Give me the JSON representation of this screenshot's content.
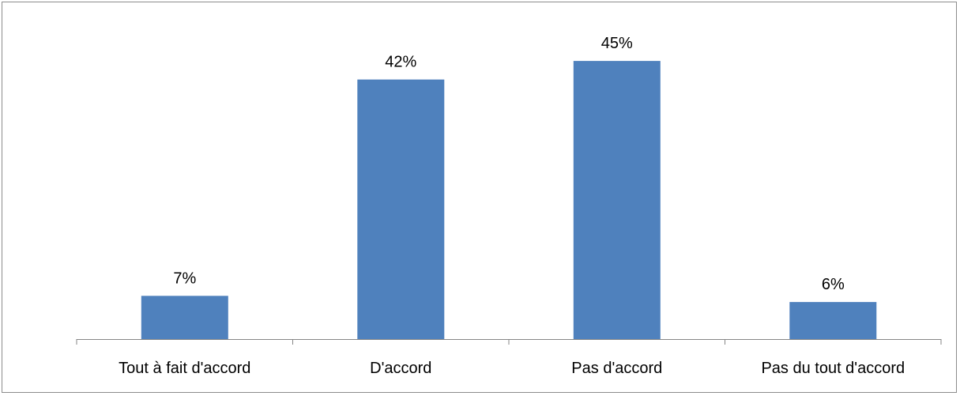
{
  "chart_data": {
    "type": "bar",
    "categories": [
      "Tout à fait d'accord",
      "D'accord",
      "Pas d'accord",
      "Pas du tout d'accord"
    ],
    "values": [
      7,
      42,
      45,
      6
    ],
    "data_labels": [
      "7%",
      "42%",
      "45%",
      "6%"
    ],
    "title": "",
    "xlabel": "",
    "ylabel": "",
    "ylim": [
      0,
      50
    ],
    "grid": false,
    "legend": "none",
    "bar_color": "#4F81BD",
    "axis_color": "#868686"
  }
}
